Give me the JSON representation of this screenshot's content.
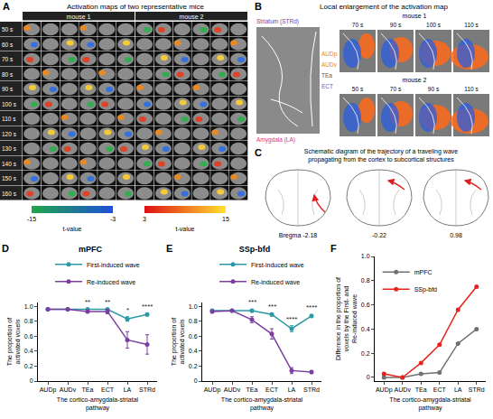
{
  "panels": {
    "A": {
      "letter": "A",
      "title": "Activation maps of two representative mice",
      "mice": [
        "mouse 1",
        "mouse 2"
      ],
      "times": [
        "50 s",
        "60 s",
        "70 s",
        "80 s",
        "90 s",
        "100 s",
        "110 s",
        "120 s",
        "130 s",
        "140 s",
        "150 s",
        "160 s"
      ],
      "colorbar": {
        "label": "t-value",
        "negative": {
          "range": [
            -15,
            -3
          ],
          "ticks": [
            -15,
            -3
          ]
        },
        "positive": {
          "range": [
            3,
            15
          ],
          "ticks": [
            3,
            15
          ]
        }
      }
    },
    "B": {
      "letter": "B",
      "title": "Local enlargement of the activation map",
      "structures": {
        "striatum": "Striatum (STRd)",
        "amygdala": "Amygdala (LA)",
        "cortex": [
          "AUDp",
          "AUDv",
          "TEa",
          "ECT"
        ]
      },
      "rows": [
        {
          "mouse": "mouse 1",
          "times": [
            "70 s",
            "90 s",
            "100 s",
            "110 s"
          ]
        },
        {
          "mouse": "mouse 2",
          "times": [
            "50 s",
            "70 s",
            "90 s",
            "110 s"
          ]
        }
      ]
    },
    "C": {
      "letter": "C",
      "title": "Schematic diagram of the trajectory of a traveling wave propagating from the cortex to subcortical structures",
      "sections": [
        "Bregma -2.18",
        "-0.22",
        "0.98"
      ]
    }
  },
  "chart_data": [
    {
      "panel": "D",
      "type": "line",
      "title": "mPFC",
      "categories": [
        "AUDp",
        "AUDv",
        "TEa",
        "ECT",
        "LA",
        "STRd"
      ],
      "series": [
        {
          "name": "First-induced wave",
          "color": "#2b9aa6",
          "marker": "circle",
          "values": [
            0.96,
            0.96,
            0.96,
            0.96,
            0.83,
            0.89
          ],
          "errors": [
            0.01,
            0.01,
            0.01,
            0.01,
            0.03,
            0.02
          ]
        },
        {
          "name": "Re-induced wave",
          "color": "#7b3fa0",
          "marker": "circle",
          "values": [
            0.96,
            0.96,
            0.93,
            0.93,
            0.55,
            0.49
          ],
          "errors": [
            0.01,
            0.01,
            0.02,
            0.03,
            0.11,
            0.13
          ]
        }
      ],
      "significance": [
        null,
        null,
        "**",
        "**",
        "*",
        "****"
      ],
      "x_label": "The cortico-amygdala-striatal pathway",
      "y_label": "The proportion of activated voxels",
      "ylim": [
        0,
        1.05
      ],
      "yticks": [
        0,
        0.2,
        0.4,
        0.6,
        0.8,
        {
          "value": 1,
          "label": "1.0"
        }
      ],
      "grid": false,
      "legend": "top"
    },
    {
      "panel": "E",
      "type": "line",
      "title": "SSp-bfd",
      "categories": [
        "AUDp",
        "AUDv",
        "TEa",
        "ECT",
        "LA",
        "STRd"
      ],
      "series": [
        {
          "name": "First-induced wave",
          "color": "#2b9aa6",
          "marker": "circle",
          "values": [
            0.94,
            0.94,
            0.94,
            0.89,
            0.7,
            0.87
          ],
          "errors": [
            0.01,
            0.01,
            0.02,
            0.02,
            0.04,
            0.02
          ]
        },
        {
          "name": "Re-induced wave",
          "color": "#7b3fa0",
          "marker": "circle",
          "values": [
            0.93,
            0.94,
            0.82,
            0.63,
            0.14,
            0.12
          ],
          "errors": [
            0.02,
            0.01,
            0.04,
            0.07,
            0.04,
            0.02
          ]
        }
      ],
      "significance": [
        null,
        null,
        "***",
        "***",
        "****",
        "****"
      ],
      "x_label": "The cortico-amygdala-striatal pathway",
      "y_label": "The proportion of activated voxels",
      "ylim": [
        0,
        1.05
      ],
      "yticks": [
        0,
        0.2,
        0.4,
        0.6,
        0.8,
        {
          "value": 1,
          "label": "1.0"
        }
      ],
      "grid": false,
      "legend": "top"
    },
    {
      "panel": "F",
      "type": "line",
      "categories": [
        "AUDp",
        "AUDv",
        "TEa",
        "ECT",
        "LA",
        "STRd"
      ],
      "series": [
        {
          "name": "mPFC",
          "color": "#707070",
          "marker": "circle",
          "values": [
            0.0,
            0.0,
            0.03,
            0.04,
            0.28,
            0.4
          ]
        },
        {
          "name": "SSp-bfd",
          "color": "#e8221e",
          "marker": "circle",
          "values": [
            0.03,
            0.0,
            0.12,
            0.27,
            0.56,
            0.75
          ]
        }
      ],
      "x_label": "The cortico-amygdala-striatal pathway",
      "y_label": "Difference in the proportion of voxels by the First- and Re-induced wave",
      "ylim": [
        -0.03,
        1.0
      ],
      "yticks": [
        0,
        0.2,
        0.4,
        0.6,
        0.8,
        {
          "value": 1,
          "label": "1.0"
        }
      ],
      "grid": false,
      "legend": "upper left"
    }
  ]
}
